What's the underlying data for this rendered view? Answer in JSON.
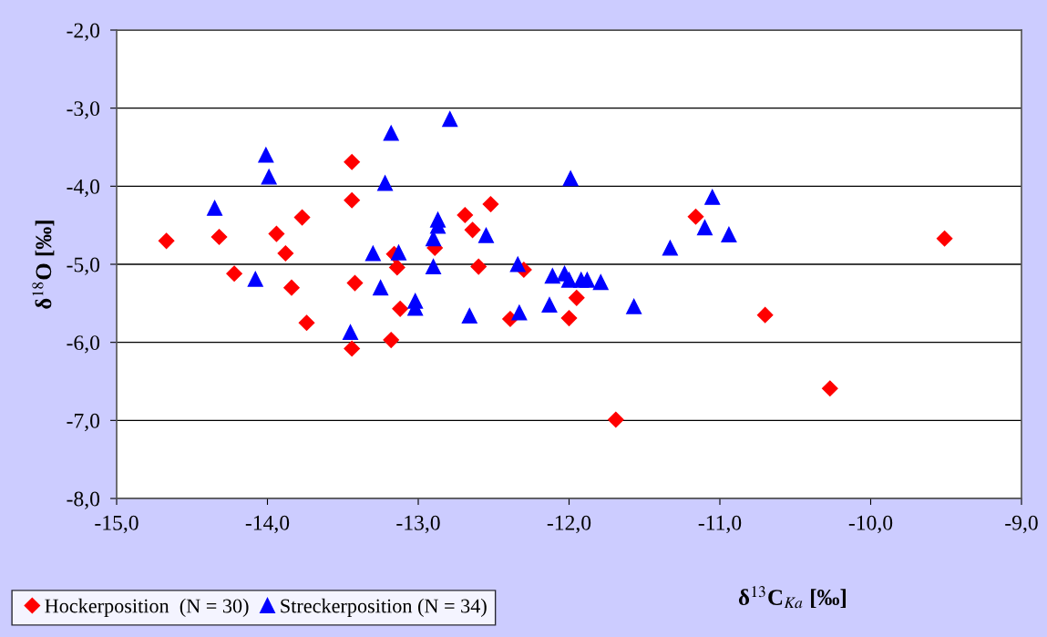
{
  "chart_data": {
    "type": "scatter",
    "xlabel": "δ$^{13}$C$_{Ka}$ [‰]",
    "ylabel": "δ$^{18}$O [‰]",
    "xlim": [
      -15,
      -9
    ],
    "xticks": [
      {
        "value": -15,
        "label": "-15,0"
      },
      {
        "value": -14,
        "label": "-14,0"
      },
      {
        "value": -13,
        "label": "-13,0"
      },
      {
        "value": -12,
        "label": "-12,0"
      },
      {
        "value": -11,
        "label": "-11,0"
      },
      {
        "value": -10,
        "label": "-10,0"
      },
      {
        "value": -9,
        "label": "-9,0"
      }
    ],
    "ylim": [
      -8,
      -2
    ],
    "yticks": [
      {
        "value": -8,
        "label": "-8,0"
      },
      {
        "value": -7,
        "label": "-7,0"
      },
      {
        "value": -6,
        "label": "-6,0"
      },
      {
        "value": -5,
        "label": "-5,0"
      },
      {
        "value": -4,
        "label": "-4,0"
      },
      {
        "value": -3,
        "label": "-3,0"
      },
      {
        "value": -2,
        "label": "-2,0"
      }
    ],
    "grid": "y",
    "legend": "bottom left",
    "series": [
      {
        "name": "Hockerposition  (N = 30)",
        "color": "#ff0000",
        "marker": "diamond",
        "x": [
          -14.67,
          -14.32,
          -14.22,
          -13.94,
          -13.88,
          -13.84,
          -13.77,
          -13.74,
          -13.44,
          -13.44,
          -13.42,
          -13.44,
          -13.18,
          -13.16,
          -13.14,
          -13.12,
          -12.89,
          -12.69,
          -12.64,
          -12.6,
          -12.52,
          -12.39,
          -12.3,
          -11.95,
          -12.0,
          -11.69,
          -11.16,
          -10.7,
          -10.27,
          -9.51
        ],
        "values": [
          -4.7,
          -4.65,
          -5.12,
          -4.61,
          -4.86,
          -5.3,
          -4.4,
          -5.75,
          -3.69,
          -4.18,
          -5.24,
          -6.08,
          -5.97,
          -4.87,
          -5.04,
          -5.57,
          -4.79,
          -4.37,
          -4.56,
          -5.03,
          -4.23,
          -5.7,
          -5.07,
          -5.43,
          -5.69,
          -6.99,
          -4.39,
          -5.65,
          -6.59,
          -4.67
        ]
      },
      {
        "name": "Streckerposition (N = 34)",
        "color": "#0000ff",
        "marker": "triangle",
        "x": [
          -14.35,
          -14.08,
          -14.01,
          -13.99,
          -13.45,
          -13.3,
          -13.25,
          -13.22,
          -13.18,
          -13.13,
          -13.02,
          -13.02,
          -12.9,
          -12.9,
          -12.87,
          -12.87,
          -12.79,
          -12.66,
          -12.55,
          -12.34,
          -12.33,
          -12.13,
          -12.11,
          -12.03,
          -12.0,
          -11.92,
          -11.88,
          -11.79,
          -11.99,
          -11.57,
          -11.33,
          -11.1,
          -11.05,
          -10.94
        ],
        "values": [
          -4.28,
          -5.19,
          -3.6,
          -3.88,
          -5.87,
          -4.86,
          -5.3,
          -3.96,
          -3.32,
          -4.85,
          -5.47,
          -5.56,
          -4.67,
          -5.03,
          -4.43,
          -4.51,
          -3.14,
          -5.66,
          -4.63,
          -5.0,
          -5.62,
          -5.52,
          -5.15,
          -5.12,
          -5.2,
          -5.2,
          -5.2,
          -5.23,
          -3.9,
          -5.54,
          -4.79,
          -4.53,
          -4.14,
          -4.62
        ]
      }
    ]
  }
}
